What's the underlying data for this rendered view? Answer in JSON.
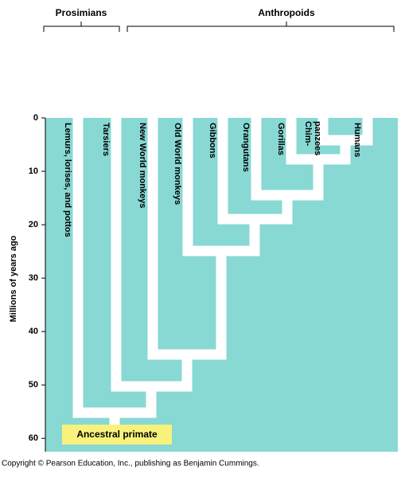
{
  "header": {
    "groups": [
      "Prosimians",
      "Anthropoids"
    ]
  },
  "axis": {
    "label": "Millions of years ago",
    "ticks": [
      0,
      10,
      20,
      30,
      40,
      50,
      60
    ],
    "lim": [
      0,
      62.5
    ]
  },
  "tips": [
    "Lemurs, lorises, and pottos",
    "Tarsiers",
    "New World monkeys",
    "Old World monkeys",
    "Gibbons",
    "Orangutans",
    "Gorillas",
    "Chim-\npanzees",
    "Humans"
  ],
  "root": "Ancestral primate",
  "footer": "Copyright © Pearson Education, Inc., publishing as Benjamin Cummings."
}
